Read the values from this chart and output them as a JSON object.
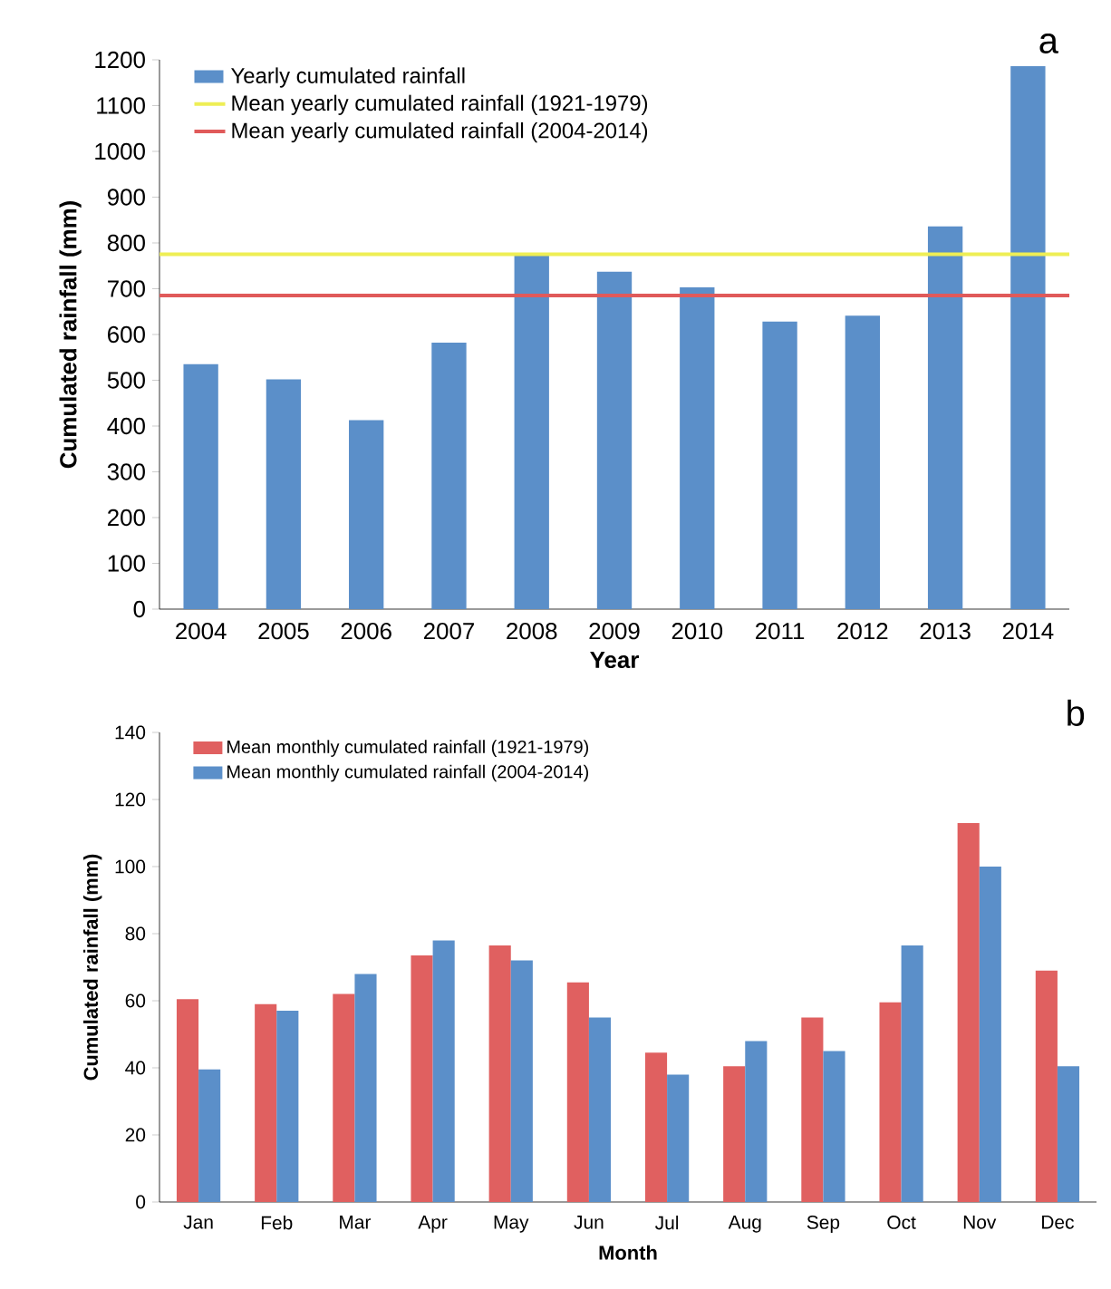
{
  "chart_data": [
    {
      "type": "bar",
      "annotations": [
        "a"
      ],
      "xlabel": "Year",
      "ylabel": "Cumulated rainfall (mm)",
      "categories": [
        "2004",
        "2005",
        "2006",
        "2007",
        "2008",
        "2009",
        "2010",
        "2011",
        "2012",
        "2013",
        "2014"
      ],
      "series": [
        {
          "name": "Yearly cumulated rainfall",
          "color": "#5b8fc9",
          "values": [
            535,
            502,
            413,
            582,
            775,
            737,
            703,
            628,
            641,
            836,
            1186
          ]
        }
      ],
      "ref_lines": [
        {
          "axis": "y",
          "value": 775,
          "label": "Mean yearly cumulated rainfall (1921-1979)",
          "color": "#eeee55"
        },
        {
          "axis": "y",
          "value": 685,
          "label": "Mean yearly cumulated rainfall (2004-2014)",
          "color": "#e05a5a"
        }
      ],
      "ylim": [
        0,
        1200
      ],
      "yticks": [
        0,
        100,
        200,
        300,
        400,
        500,
        600,
        700,
        800,
        900,
        1000,
        1100,
        1200
      ],
      "legend": "top left"
    },
    {
      "type": "bar",
      "annotations": [
        "b"
      ],
      "xlabel": "Month",
      "ylabel": "Cumulated rainfall (mm)",
      "categories": [
        "Jan",
        "Feb",
        "Mar",
        "Apr",
        "May",
        "Jun",
        "Jul",
        "Aug",
        "Sep",
        "Oct",
        "Nov",
        "Dec"
      ],
      "series": [
        {
          "name": "Mean monthly cumulated rainfall (1921-1979)",
          "color": "#e06060",
          "values": [
            60.5,
            59,
            62,
            73.5,
            76.5,
            65.5,
            44.5,
            40.5,
            55,
            59.5,
            113,
            69
          ]
        },
        {
          "name": "Mean monthly cumulated rainfall (2004-2014)",
          "color": "#5b8fc9",
          "values": [
            39.5,
            57,
            68,
            78,
            72,
            55,
            38,
            48,
            45,
            76.5,
            100,
            40.5
          ]
        }
      ],
      "ylim": [
        0,
        140
      ],
      "yticks": [
        0,
        20,
        40,
        60,
        80,
        100,
        120,
        140
      ],
      "legend": "top left"
    }
  ]
}
